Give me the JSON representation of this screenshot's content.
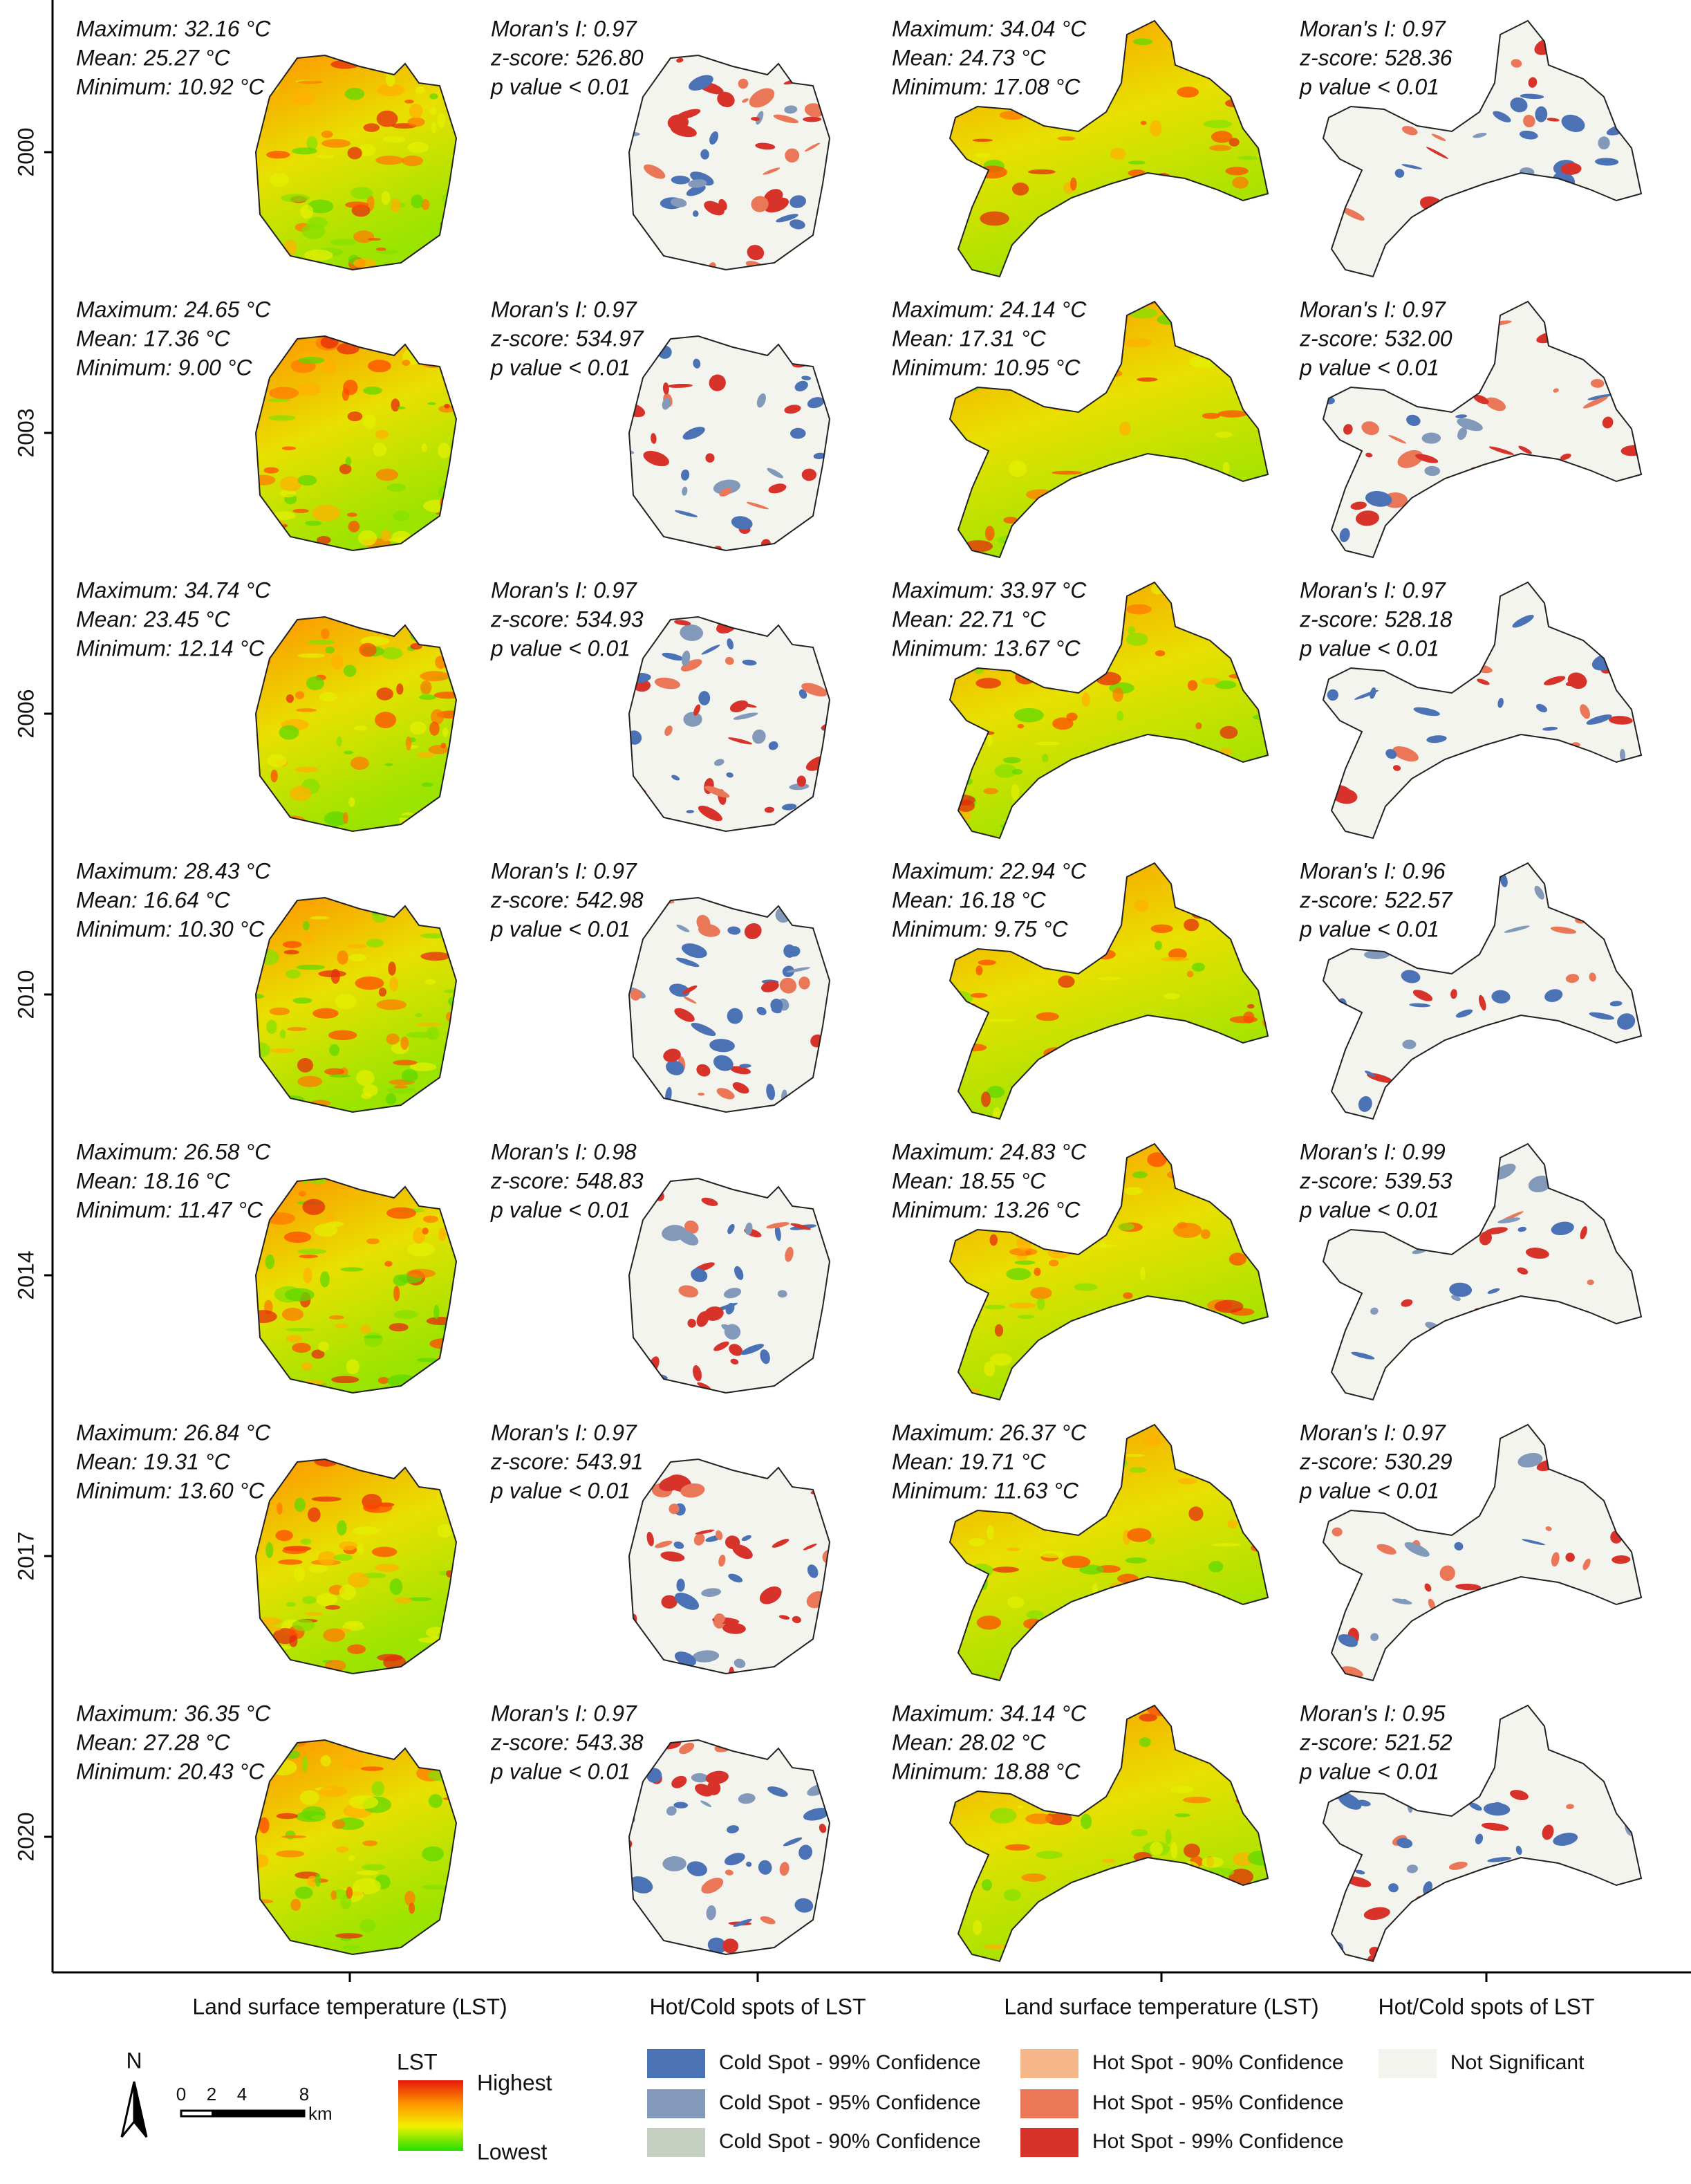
{
  "rows": [
    {
      "year": "2000",
      "lst_a": [
        "Maximum: 32.16 °C",
        "Mean: 25.27 °C",
        "Minimum: 10.92 °C"
      ],
      "hotspot_a": [
        "Moran's I: 0.97",
        "z-score: 526.80",
        "p value < 0.01"
      ],
      "lst_b": [
        "Maximum: 34.04 °C",
        "Mean: 24.73 °C",
        "Minimum: 17.08 °C"
      ],
      "hotspot_b": [
        "Moran's I: 0.97",
        "z-score: 528.36",
        "p value < 0.01"
      ]
    },
    {
      "year": "2003",
      "lst_a": [
        "Maximum: 24.65 °C",
        "Mean: 17.36 °C",
        "Minimum: 9.00 °C"
      ],
      "hotspot_a": [
        "Moran's I: 0.97",
        "z-score: 534.97",
        "p value < 0.01"
      ],
      "lst_b": [
        "Maximum: 24.14 °C",
        "Mean: 17.31 °C",
        "Minimum: 10.95 °C"
      ],
      "hotspot_b": [
        "Moran's I: 0.97",
        "z-score: 532.00",
        "p value < 0.01"
      ]
    },
    {
      "year": "2006",
      "lst_a": [
        "Maximum: 34.74 °C",
        "Mean: 23.45 °C",
        "Minimum: 12.14 °C"
      ],
      "hotspot_a": [
        "Moran's I: 0.97",
        "z-score: 534.93",
        "p value < 0.01"
      ],
      "lst_b": [
        "Maximum: 33.97 °C",
        "Mean: 22.71 °C",
        "Minimum: 13.67 °C"
      ],
      "hotspot_b": [
        "Moran's I: 0.97",
        "z-score: 528.18",
        "p value < 0.01"
      ]
    },
    {
      "year": "2010",
      "lst_a": [
        "Maximum: 28.43 °C",
        "Mean: 16.64 °C",
        "Minimum: 10.30 °C"
      ],
      "hotspot_a": [
        "Moran's I: 0.97",
        "z-score: 542.98",
        "p value < 0.01"
      ],
      "lst_b": [
        "Maximum: 22.94 °C",
        "Mean: 16.18 °C",
        "Minimum: 9.75 °C"
      ],
      "hotspot_b": [
        "Moran's I: 0.96",
        "z-score: 522.57",
        "p value < 0.01"
      ]
    },
    {
      "year": "2014",
      "lst_a": [
        "Maximum: 26.58 °C",
        "Mean: 18.16 °C",
        "Minimum: 11.47 °C"
      ],
      "hotspot_a": [
        "Moran's I: 0.98",
        "z-score: 548.83",
        "p value < 0.01"
      ],
      "lst_b": [
        "Maximum: 24.83 °C",
        "Mean: 18.55 °C",
        "Minimum: 13.26 °C"
      ],
      "hotspot_b": [
        "Moran's I: 0.99",
        "z-score: 539.53",
        "p value < 0.01"
      ]
    },
    {
      "year": "2017",
      "lst_a": [
        "Maximum: 26.84 °C",
        "Mean: 19.31 °C",
        "Minimum: 13.60 °C"
      ],
      "hotspot_a": [
        "Moran's I: 0.97",
        "z-score: 543.91",
        "p value < 0.01"
      ],
      "lst_b": [
        "Maximum: 26.37 °C",
        "Mean: 19.71 °C",
        "Minimum: 11.63 °C"
      ],
      "hotspot_b": [
        "Moran's I: 0.97",
        "z-score: 530.29",
        "p value < 0.01"
      ]
    },
    {
      "year": "2020",
      "lst_a": [
        "Maximum: 36.35 °C",
        "Mean: 27.28 °C",
        "Minimum: 20.43 °C"
      ],
      "hotspot_a": [
        "Moran's I: 0.97",
        "z-score: 543.38",
        "p value < 0.01"
      ],
      "lst_b": [
        "Maximum: 34.14 °C",
        "Mean: 28.02 °C",
        "Minimum: 18.88 °C"
      ],
      "hotspot_b": [
        "Moran's I: 0.95",
        "z-score: 521.52",
        "p value < 0.01"
      ]
    }
  ],
  "column_labels": [
    "Land surface temperature (LST)",
    "Hot/Cold spots of LST",
    "Land surface temperature (LST)",
    "Hot/Cold spots of LST"
  ],
  "north": "N",
  "scale_bar": {
    "labels": [
      "0",
      "2",
      "4",
      "8"
    ],
    "unit": "km"
  },
  "lst_legend": {
    "title": "LST",
    "high": "Highest",
    "low": "Lowest"
  },
  "hotspot_legend": [
    {
      "label": "Cold Spot - 99% Confidence",
      "color": "#4a72b5"
    },
    {
      "label": "Cold Spot - 95% Confidence",
      "color": "#8399b9"
    },
    {
      "label": "Cold Spot - 90% Confidence",
      "color": "#c5d0c2"
    },
    {
      "label": "Hot Spot - 90% Confidence",
      "color": "#f6b88a"
    },
    {
      "label": "Hot Spot - 95% Confidence",
      "color": "#eb7759"
    },
    {
      "label": "Hot Spot - 99% Confidence",
      "color": "#d7332a"
    },
    {
      "label": "Not Significant",
      "color": "#f4f4ef"
    }
  ]
}
